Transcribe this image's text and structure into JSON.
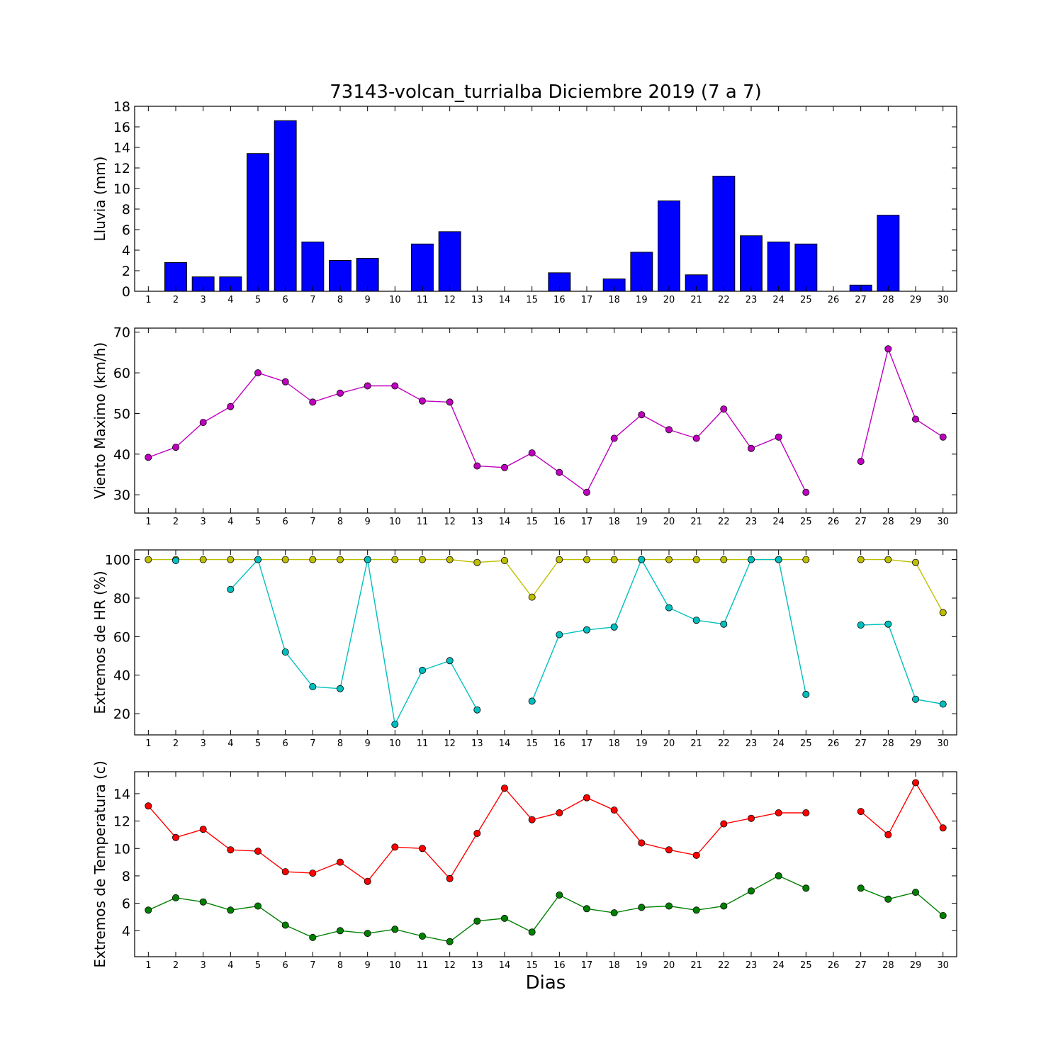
{
  "title": "73143-volcan_turrialba Diciembre 2019  (7 a 7)",
  "xlabel": "Dias",
  "chart_data": [
    {
      "type": "bar",
      "ylabel": "Lluvia (mm)",
      "ylim": [
        0,
        18
      ],
      "yticks": [
        0,
        2,
        4,
        6,
        8,
        10,
        12,
        14,
        16,
        18
      ],
      "categories": [
        "1",
        "2",
        "3",
        "4",
        "5",
        "6",
        "7",
        "8",
        "9",
        "10",
        "11",
        "12",
        "13",
        "14",
        "15",
        "16",
        "17",
        "18",
        "19",
        "20",
        "21",
        "22",
        "23",
        "24",
        "25",
        "26",
        "27",
        "28",
        "29",
        "30"
      ],
      "series": [
        {
          "color": "#0000ff",
          "values": [
            0,
            2.8,
            1.4,
            1.4,
            13.4,
            16.6,
            4.8,
            3.0,
            3.2,
            0,
            4.6,
            5.8,
            0,
            0,
            0,
            1.8,
            0,
            1.2,
            3.8,
            8.8,
            1.6,
            11.2,
            5.4,
            4.8,
            4.6,
            0,
            0.6,
            7.4,
            0,
            0
          ]
        }
      ]
    },
    {
      "type": "line",
      "ylabel": "Viento Maximo (km/h)",
      "ylim": [
        25.5,
        71
      ],
      "yticks": [
        30,
        40,
        50,
        60,
        70
      ],
      "x": [
        1,
        2,
        3,
        4,
        5,
        6,
        7,
        8,
        9,
        10,
        11,
        12,
        13,
        14,
        15,
        16,
        17,
        18,
        19,
        20,
        21,
        22,
        23,
        24,
        25,
        26,
        27,
        28,
        29,
        30
      ],
      "series": [
        {
          "color": "#bf00bf",
          "values": [
            39.2,
            41.7,
            47.8,
            51.7,
            60.0,
            57.8,
            52.8,
            55.0,
            56.8,
            56.8,
            53.1,
            52.8,
            37.1,
            36.7,
            40.3,
            35.5,
            30.6,
            43.9,
            49.7,
            46.0,
            43.9,
            51.1,
            41.4,
            44.2,
            30.6,
            null,
            38.2,
            65.9,
            48.6,
            44.2
          ]
        }
      ]
    },
    {
      "type": "line",
      "ylabel": "Extremos de HR (%)",
      "ylim": [
        9,
        105
      ],
      "yticks": [
        20,
        40,
        60,
        80,
        100
      ],
      "x": [
        1,
        2,
        3,
        4,
        5,
        6,
        7,
        8,
        9,
        10,
        11,
        12,
        13,
        14,
        15,
        16,
        17,
        18,
        19,
        20,
        21,
        22,
        23,
        24,
        25,
        26,
        27,
        28,
        29,
        30
      ],
      "series": [
        {
          "color": "#bfbf00",
          "values": [
            100,
            100,
            100,
            100,
            100,
            100,
            100,
            100,
            100,
            100,
            100,
            100,
            98.5,
            99.5,
            80.5,
            100,
            100,
            100,
            100,
            100,
            100,
            100,
            100,
            100,
            100,
            null,
            100,
            100,
            98.5,
            72.5
          ]
        },
        {
          "color": "#00bfbf",
          "values": [
            null,
            99.5,
            null,
            84.5,
            100,
            52.0,
            34.0,
            33.0,
            100,
            14.5,
            42.5,
            47.5,
            22.0,
            null,
            26.5,
            61.0,
            63.5,
            65.0,
            100,
            75.0,
            68.5,
            66.5,
            100,
            100,
            30.0,
            null,
            66.0,
            66.5,
            27.5,
            25.0
          ]
        }
      ]
    },
    {
      "type": "line",
      "ylabel": "Extremos de Temperatura (c)",
      "ylim": [
        2.1,
        15.6
      ],
      "yticks": [
        4,
        6,
        8,
        10,
        12,
        14
      ],
      "x": [
        1,
        2,
        3,
        4,
        5,
        6,
        7,
        8,
        9,
        10,
        11,
        12,
        13,
        14,
        15,
        16,
        17,
        18,
        19,
        20,
        21,
        22,
        23,
        24,
        25,
        26,
        27,
        28,
        29,
        30
      ],
      "series": [
        {
          "color": "#ff0000",
          "values": [
            13.1,
            10.8,
            11.4,
            9.9,
            9.8,
            8.3,
            8.2,
            9.0,
            7.6,
            10.1,
            10.0,
            7.8,
            11.1,
            14.4,
            12.1,
            12.6,
            13.7,
            12.8,
            10.4,
            9.9,
            9.5,
            11.8,
            12.2,
            12.6,
            12.6,
            null,
            12.7,
            11.0,
            14.8,
            11.5
          ]
        },
        {
          "color": "#008000",
          "values": [
            5.5,
            6.4,
            6.1,
            5.5,
            5.8,
            4.4,
            3.5,
            4.0,
            3.8,
            4.1,
            3.6,
            3.2,
            4.7,
            4.9,
            3.9,
            6.6,
            5.6,
            5.3,
            5.7,
            5.8,
            5.5,
            5.8,
            6.9,
            8.0,
            7.1,
            null,
            7.1,
            6.3,
            6.8,
            5.1
          ]
        }
      ]
    }
  ]
}
